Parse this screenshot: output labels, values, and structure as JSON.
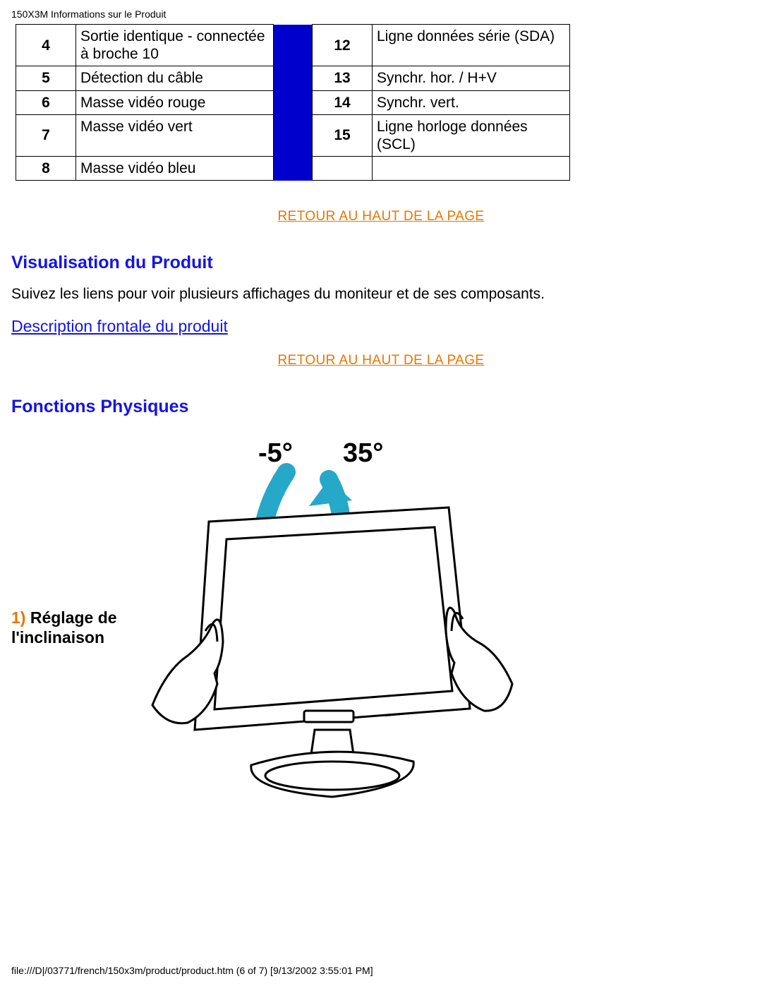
{
  "header": {
    "title": "150X3M Informations sur le Produit"
  },
  "pin_table": {
    "left_col_width": 85,
    "desc_col_width": 280,
    "separator_color": "#0000cc",
    "border_color": "#000000",
    "font_size": 21,
    "rows": [
      {
        "left_num": "4",
        "left_desc": "Sortie identique - connectée à broche 10",
        "right_num": "12",
        "right_desc": "Ligne données série (SDA)"
      },
      {
        "left_num": "5",
        "left_desc": "Détection du câble",
        "right_num": "13",
        "right_desc": "Synchr. hor. / H+V"
      },
      {
        "left_num": "6",
        "left_desc": "Masse vidéo rouge",
        "right_num": "14",
        "right_desc": "Synchr. vert."
      },
      {
        "left_num": "7",
        "left_desc": "Masse vidéo vert",
        "right_num": "15",
        "right_desc": "Ligne horloge données (SCL)"
      },
      {
        "left_num": "8",
        "left_desc": "Masse vidéo bleu",
        "right_num": "",
        "right_desc": ""
      }
    ]
  },
  "links": {
    "top_of_page": "RETOUR AU HAUT DE LA PAGE",
    "front_description": "Description frontale du produit"
  },
  "sections": {
    "visualisation_title": "Visualisation du Produit",
    "visualisation_text": "Suivez les liens pour voir plusieurs affichages du moniteur et de ses composants.",
    "physical_title": "Fonctions Physiques"
  },
  "tilt": {
    "number_prefix": "1)",
    "label_line": "Réglage de l'inclinaison",
    "angle_neg": "-5°",
    "angle_pos": "35°",
    "arrow_color": "#26a8c9",
    "text_color": "#000000",
    "font_size_angles": 38
  },
  "colors": {
    "link_orange": "#e67700",
    "heading_blue": "#1414e5",
    "body_text": "#000000",
    "background": "#ffffff"
  },
  "footer": {
    "text": "file:///D|/03771/french/150x3m/product/product.htm (6 of 7) [9/13/2002 3:55:01 PM]"
  }
}
